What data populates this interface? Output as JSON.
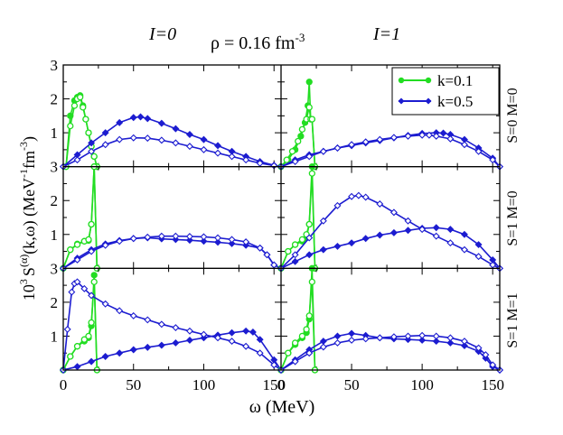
{
  "header": {
    "left_title": "I=0",
    "right_title": "I=1",
    "density_label": "ρ = 0.16 fm",
    "density_exp": "-3"
  },
  "y_axis": {
    "base": "10",
    "exp3": "3",
    "s": "S",
    "sup_alpha": "(α)",
    "args": "(k,ω) (MeV",
    "exp_m1": "-1",
    "fm": "fm",
    "exp_m3": "-3",
    "close": ")"
  },
  "x_axis": {
    "label": "ω (MeV)"
  },
  "row_labels": [
    "S=0 M=0",
    "S=1 M=0",
    "S=1 M=1"
  ],
  "legend": [
    {
      "label": "k=0.1",
      "color": "#22dd22"
    },
    {
      "label": "k=0.5",
      "color": "#1c1cd0"
    }
  ],
  "chart_data": {
    "type": "line",
    "xlim": [
      0,
      155
    ],
    "ylim": [
      0,
      3
    ],
    "x_ticks": [
      "0",
      "50",
      "100",
      "150"
    ],
    "y_ticks": [
      "1",
      "2",
      "3"
    ],
    "colors": {
      "k01": "#22dd22",
      "k05": "#1c1cd0"
    },
    "panels": [
      {
        "row": 0,
        "col": 0,
        "isospin": "I=0",
        "channel": "S=0 M=0",
        "series": [
          {
            "name": "k=0.1",
            "style": "solid",
            "x": [
              2,
              5,
              8,
              10,
              12,
              14,
              16,
              18,
              20,
              22,
              24
            ],
            "y": [
              0,
              1.5,
              1.95,
              2.05,
              2.1,
              1.8,
              1.4,
              1.0,
              0.6,
              0.3,
              0
            ]
          },
          {
            "name": "k=0.1",
            "style": "open",
            "x": [
              2,
              5,
              8,
              10,
              12,
              14,
              16,
              18,
              20,
              22,
              24
            ],
            "y": [
              0,
              1.2,
              1.8,
              2.0,
              2.05,
              1.75,
              1.4,
              1.0,
              0.6,
              0.3,
              0
            ]
          },
          {
            "name": "k=0.5",
            "style": "solid",
            "x": [
              0,
              10,
              20,
              30,
              40,
              50,
              55,
              60,
              70,
              80,
              90,
              100,
              110,
              120,
              130,
              140,
              150,
              155
            ],
            "y": [
              0,
              0.35,
              0.7,
              1.0,
              1.3,
              1.45,
              1.47,
              1.42,
              1.28,
              1.12,
              0.95,
              0.8,
              0.62,
              0.45,
              0.3,
              0.15,
              0.04,
              0
            ]
          },
          {
            "name": "k=0.5",
            "style": "open",
            "x": [
              0,
              10,
              20,
              30,
              40,
              50,
              60,
              70,
              80,
              90,
              100,
              110,
              120,
              130,
              140,
              150,
              155
            ],
            "y": [
              0,
              0.2,
              0.45,
              0.65,
              0.8,
              0.85,
              0.84,
              0.78,
              0.7,
              0.6,
              0.5,
              0.4,
              0.3,
              0.2,
              0.1,
              0.03,
              0
            ]
          }
        ]
      },
      {
        "row": 0,
        "col": 1,
        "isospin": "I=1",
        "channel": "S=0 M=0",
        "series": [
          {
            "name": "k=0.1",
            "style": "solid",
            "x": [
              0,
              5,
              10,
              14,
              17,
              19,
              20,
              21,
              22,
              24
            ],
            "y": [
              0,
              0.2,
              0.5,
              0.9,
              1.3,
              1.8,
              2.5,
              1.4,
              1.4,
              0
            ]
          },
          {
            "name": "k=0.1",
            "style": "open",
            "x": [
              0,
              4,
              8,
              12,
              15,
              18,
              20,
              21,
              22,
              24
            ],
            "y": [
              0,
              0.2,
              0.45,
              0.75,
              1.1,
              1.4,
              1.75,
              1.4,
              1.4,
              0
            ]
          },
          {
            "name": "k=0.5",
            "style": "solid",
            "x": [
              0,
              10,
              20,
              30,
              40,
              50,
              60,
              70,
              80,
              90,
              100,
              110,
              115,
              120,
              130,
              140,
              150,
              155
            ],
            "y": [
              0,
              0.2,
              0.35,
              0.45,
              0.55,
              0.62,
              0.7,
              0.77,
              0.85,
              0.92,
              0.98,
              1.0,
              0.99,
              0.95,
              0.8,
              0.55,
              0.25,
              0
            ]
          },
          {
            "name": "k=0.5",
            "style": "open",
            "x": [
              0,
              10,
              20,
              30,
              40,
              50,
              60,
              70,
              80,
              90,
              100,
              105,
              110,
              120,
              130,
              140,
              150,
              155
            ],
            "y": [
              0,
              0.15,
              0.3,
              0.45,
              0.55,
              0.65,
              0.73,
              0.8,
              0.86,
              0.9,
              0.93,
              0.93,
              0.9,
              0.82,
              0.65,
              0.45,
              0.2,
              0
            ]
          }
        ]
      },
      {
        "row": 1,
        "col": 0,
        "isospin": "I=0",
        "channel": "S=1 M=0",
        "series": [
          {
            "name": "k=0.1",
            "style": "solid",
            "x": [
              0,
              5,
              10,
              15,
              18,
              20,
              22,
              24
            ],
            "y": [
              0,
              0.55,
              0.72,
              0.8,
              0.82,
              1.3,
              3.0,
              0
            ]
          },
          {
            "name": "k=0.1",
            "style": "open",
            "x": [
              0,
              5,
              10,
              15,
              18,
              20,
              22,
              24
            ],
            "y": [
              0,
              0.55,
              0.7,
              0.8,
              0.85,
              1.3,
              3.0,
              0
            ]
          },
          {
            "name": "k=0.5",
            "style": "solid",
            "x": [
              0,
              10,
              20,
              30,
              40,
              50,
              60,
              70,
              80,
              90,
              100,
              110,
              120,
              130,
              140,
              145,
              150,
              155
            ],
            "y": [
              0,
              0.3,
              0.55,
              0.72,
              0.82,
              0.88,
              0.9,
              0.87,
              0.85,
              0.83,
              0.8,
              0.77,
              0.73,
              0.68,
              0.6,
              0.4,
              0.1,
              0
            ]
          },
          {
            "name": "k=0.5",
            "style": "open",
            "x": [
              0,
              10,
              20,
              30,
              40,
              50,
              60,
              70,
              80,
              90,
              100,
              110,
              120,
              130,
              140,
              145,
              150,
              155
            ],
            "y": [
              0,
              0.25,
              0.5,
              0.68,
              0.8,
              0.88,
              0.92,
              0.95,
              0.95,
              0.94,
              0.93,
              0.9,
              0.85,
              0.78,
              0.6,
              0.4,
              0.1,
              0
            ]
          }
        ]
      },
      {
        "row": 1,
        "col": 1,
        "isospin": "I=1",
        "channel": "S=1 M=0",
        "series": [
          {
            "name": "k=0.1",
            "style": "solid",
            "x": [
              0,
              5,
              10,
              15,
              18,
              20,
              22,
              24
            ],
            "y": [
              0,
              0.5,
              0.7,
              0.8,
              0.9,
              1.3,
              3.0,
              0
            ]
          },
          {
            "name": "k=0.1",
            "style": "open",
            "x": [
              0,
              5,
              10,
              15,
              18,
              20,
              22,
              24
            ],
            "y": [
              0,
              0.5,
              0.7,
              0.85,
              1.0,
              1.3,
              2.8,
              0
            ]
          },
          {
            "name": "k=0.5",
            "style": "solid",
            "x": [
              0,
              10,
              20,
              30,
              40,
              50,
              60,
              70,
              80,
              90,
              100,
              110,
              120,
              130,
              140,
              150,
              155
            ],
            "y": [
              0,
              0.2,
              0.4,
              0.55,
              0.65,
              0.75,
              0.88,
              0.98,
              1.05,
              1.12,
              1.18,
              1.2,
              1.15,
              1.0,
              0.7,
              0.25,
              0
            ]
          },
          {
            "name": "k=0.5",
            "style": "open",
            "x": [
              0,
              10,
              20,
              30,
              40,
              50,
              55,
              60,
              70,
              80,
              90,
              100,
              110,
              120,
              130,
              140,
              150,
              155
            ],
            "y": [
              0,
              0.4,
              0.9,
              1.4,
              1.85,
              2.12,
              2.15,
              2.1,
              1.9,
              1.65,
              1.4,
              1.15,
              0.95,
              0.75,
              0.55,
              0.35,
              0.1,
              0
            ]
          }
        ]
      },
      {
        "row": 2,
        "col": 0,
        "isospin": "I=0",
        "channel": "S=1 M=1",
        "series": [
          {
            "name": "k=0.1",
            "style": "solid",
            "x": [
              0,
              5,
              10,
              15,
              18,
              20,
              22,
              24
            ],
            "y": [
              0,
              0.4,
              0.7,
              0.85,
              0.95,
              1.3,
              2.8,
              0
            ]
          },
          {
            "name": "k=0.1",
            "style": "open",
            "x": [
              0,
              5,
              10,
              15,
              18,
              20,
              22,
              24
            ],
            "y": [
              0,
              0.4,
              0.7,
              0.9,
              1.0,
              1.4,
              2.6,
              0
            ]
          },
          {
            "name": "k=0.5",
            "style": "solid",
            "x": [
              0,
              10,
              20,
              30,
              40,
              50,
              60,
              70,
              80,
              90,
              100,
              110,
              120,
              130,
              135,
              140,
              150,
              155
            ],
            "y": [
              0,
              0.1,
              0.25,
              0.4,
              0.5,
              0.6,
              0.67,
              0.73,
              0.8,
              0.88,
              0.95,
              1.03,
              1.1,
              1.15,
              1.12,
              0.9,
              0.3,
              0
            ]
          },
          {
            "name": "k=0.5",
            "style": "open",
            "x": [
              0,
              3,
              6,
              8,
              10,
              15,
              20,
              30,
              40,
              50,
              60,
              70,
              80,
              90,
              100,
              110,
              120,
              130,
              140,
              150,
              155
            ],
            "y": [
              0,
              1.2,
              2.3,
              2.55,
              2.6,
              2.4,
              2.2,
              1.95,
              1.75,
              1.6,
              1.48,
              1.35,
              1.25,
              1.15,
              1.05,
              0.95,
              0.85,
              0.7,
              0.5,
              0.15,
              0
            ]
          }
        ]
      },
      {
        "row": 2,
        "col": 1,
        "isospin": "I=1",
        "channel": "S=1 M=1",
        "series": [
          {
            "name": "k=0.1",
            "style": "solid",
            "x": [
              0,
              5,
              10,
              15,
              18,
              20,
              22,
              24
            ],
            "y": [
              0,
              0.5,
              0.75,
              0.95,
              1.1,
              1.5,
              3.0,
              0
            ]
          },
          {
            "name": "k=0.1",
            "style": "open",
            "x": [
              0,
              5,
              10,
              15,
              18,
              20,
              22,
              24
            ],
            "y": [
              0,
              0.5,
              0.8,
              1.0,
              1.2,
              1.6,
              2.6,
              0
            ]
          },
          {
            "name": "k=0.5",
            "style": "solid",
            "x": [
              0,
              10,
              20,
              30,
              40,
              50,
              60,
              70,
              80,
              90,
              100,
              110,
              120,
              130,
              140,
              145,
              150,
              155
            ],
            "y": [
              0,
              0.3,
              0.6,
              0.85,
              1.0,
              1.08,
              1.02,
              0.95,
              0.92,
              0.9,
              0.88,
              0.85,
              0.8,
              0.72,
              0.55,
              0.35,
              0.1,
              0
            ]
          },
          {
            "name": "k=0.5",
            "style": "open",
            "x": [
              0,
              10,
              20,
              30,
              40,
              50,
              60,
              70,
              80,
              90,
              100,
              110,
              120,
              130,
              140,
              145,
              150,
              155
            ],
            "y": [
              0,
              0.25,
              0.5,
              0.68,
              0.8,
              0.88,
              0.92,
              0.95,
              0.98,
              1.0,
              1.02,
              1.0,
              0.95,
              0.85,
              0.65,
              0.45,
              0.15,
              0
            ]
          }
        ]
      }
    ]
  }
}
